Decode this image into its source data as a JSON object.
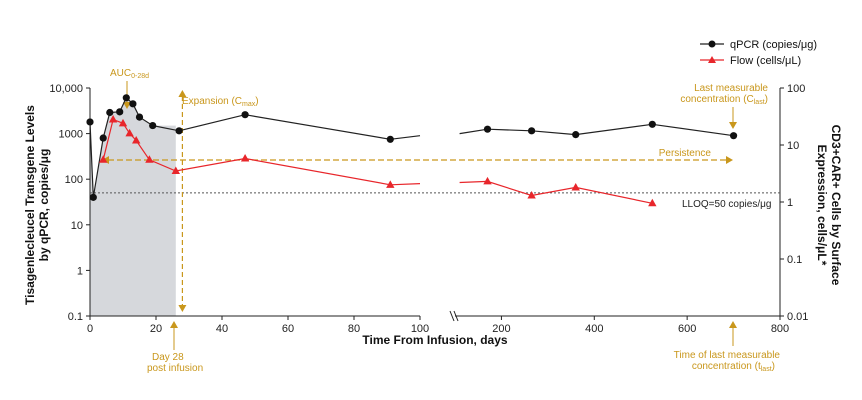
{
  "chart_data": {
    "type": "line",
    "xlabel": "Time From Infusion, days",
    "ylabel_left": [
      "Tisagenlecleucel Transgene Levels",
      "by qPCR, copies/μg"
    ],
    "ylabel_right": [
      "CD3+CAR+ Cells by Surface",
      "Expression, cells/μL*"
    ],
    "x_ticks_left": [
      "0",
      "20",
      "40",
      "60",
      "80",
      "100"
    ],
    "x_ticks_right": [
      "200",
      "400",
      "600",
      "800"
    ],
    "y_left_ticks": [
      "0.1",
      "1",
      "10",
      "100",
      "1000",
      "10,000"
    ],
    "y_right_ticks": [
      "0.01",
      "0.1",
      "1",
      "10",
      "100"
    ],
    "y_left_range": [
      0.1,
      10000
    ],
    "y_right_range": [
      0.01,
      100
    ],
    "scale": "log",
    "series": [
      {
        "name": "qPCR (copies/μg)",
        "color": "#222222",
        "marker": "circle",
        "axis": "left",
        "x": [
          0,
          1,
          4,
          6,
          9,
          11,
          13,
          15,
          19,
          27,
          47,
          91,
          100,
          110,
          170,
          265,
          360,
          525,
          700
        ],
        "y": [
          1800,
          40,
          800,
          2900,
          3000,
          6100,
          4500,
          2300,
          1500,
          1150,
          2600,
          750,
          900,
          1000,
          1250,
          1150,
          950,
          1600,
          900
        ],
        "gap_after": 100
      },
      {
        "name": "Flow (cells/μL)",
        "color": "#e8262b",
        "marker": "triangle",
        "axis": "right",
        "x": [
          4,
          7,
          10,
          12,
          14,
          18,
          26,
          47,
          91,
          100,
          110,
          170,
          265,
          360,
          525
        ],
        "y": [
          5.5,
          28,
          24,
          16,
          12,
          5.5,
          3.5,
          5.8,
          2,
          2.1,
          2.2,
          2.3,
          1.3,
          1.8,
          0.95
        ],
        "gap_after": 100
      }
    ],
    "lloq": {
      "value": 50,
      "label": "LLOQ=50 copies/μg"
    },
    "shaded_region": {
      "x": [
        0,
        26
      ]
    },
    "annotations": {
      "auc": "AUC",
      "auc_sub": "0-28d",
      "expansion": "Expansion (C",
      "expansion_sub": "max",
      "expansion_end": ")",
      "day28_line1": "Day 28",
      "day28_line2": "post infusion",
      "last_conc_line1": "Last measurable",
      "last_conc_line2": "concentration (C",
      "last_conc_sub": "last",
      "last_conc_end": ")",
      "persistence": "Persistence",
      "tlast_line1": "Time of last measurable",
      "tlast_line2": "concentration (t",
      "tlast_sub": "last",
      "tlast_end": ")"
    },
    "colors": {
      "annotation": "#c9971c",
      "lloq": "#555555",
      "shade": "#d6d8dc"
    }
  }
}
